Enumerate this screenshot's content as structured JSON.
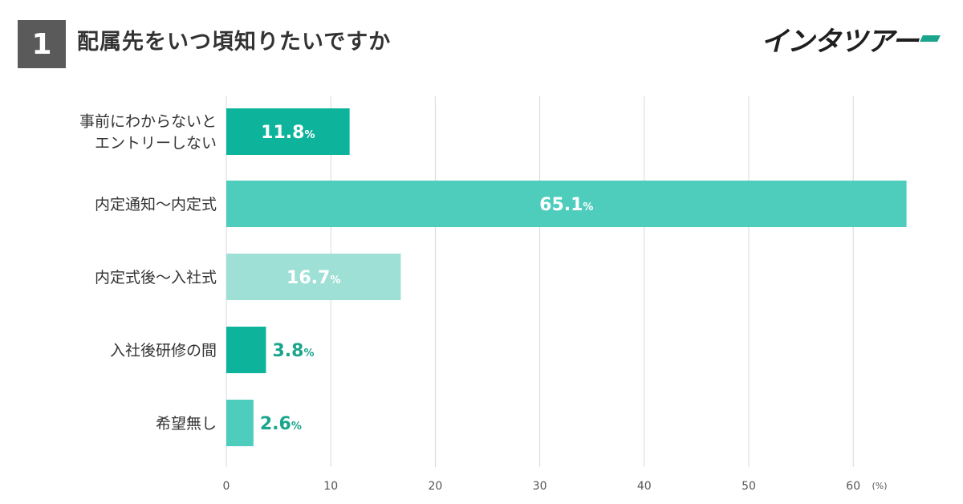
{
  "header": {
    "question_number": "1",
    "title": "配属先をいつ頃知りたいですか"
  },
  "logo": {
    "text": "インタツアー"
  },
  "colors": {
    "bar_dark": "#0db39b",
    "bar_mid": "#4ecdbd",
    "bar_light": "#9fe0d6",
    "grid": "#d9d9d9",
    "outside_label": "#1aa58c"
  },
  "chart_data": {
    "type": "bar",
    "orientation": "horizontal",
    "categories": [
      [
        "事前にわからないと",
        "エントリーしない"
      ],
      [
        "内定通知〜内定式"
      ],
      [
        "内定式後〜入社式"
      ],
      [
        "入社後研修の間"
      ],
      [
        "希望無し"
      ]
    ],
    "values": [
      11.8,
      65.1,
      16.7,
      3.8,
      2.6
    ],
    "value_labels": [
      "11.8",
      "65.1",
      "16.7",
      "3.8",
      "2.6"
    ],
    "value_unit": "%",
    "bar_colors": [
      "#0db39b",
      "#4ecdbd",
      "#9fe0d6",
      "#0db39b",
      "#4ecdbd"
    ],
    "label_inside": [
      true,
      true,
      true,
      false,
      false
    ],
    "xticks": [
      "0",
      "10",
      "20",
      "30",
      "40",
      "50",
      "60"
    ],
    "xtick_values": [
      0,
      10,
      20,
      30,
      40,
      50,
      60
    ],
    "xlim": [
      0,
      66
    ],
    "xunit": "(%)",
    "grid": true
  }
}
